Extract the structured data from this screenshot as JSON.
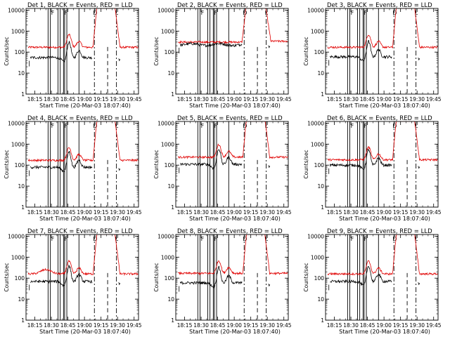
{
  "figure": {
    "title": "",
    "layout": "3x3 grid of detector light curves"
  },
  "chart_data": {
    "type": "line",
    "shared": {
      "xlabel": "Start Time (20-Mar-03 18:07:40)",
      "ylabel": "Counts/sec",
      "x_ticks": [
        "18:15",
        "18:30",
        "18:45",
        "19:00",
        "19:15",
        "19:30",
        "19:45"
      ],
      "x_tick_minutes": [
        0,
        15,
        30,
        45,
        60,
        75,
        90
      ],
      "y_scale": "log",
      "y_ticks": [
        "1",
        "10",
        "100",
        "1000",
        "10000"
      ],
      "y_tick_values": [
        1,
        10,
        100,
        1000,
        10000
      ],
      "xlim_minutes": [
        -8,
        94
      ],
      "ylim": [
        1,
        12000
      ],
      "vlines_solid_minutes": [
        12,
        14,
        21,
        23,
        26,
        27,
        29,
        40
      ],
      "vlines_dashdot_minutes": [
        54,
        74
      ],
      "markers": [
        {
          "label": "F",
          "x": 16
        },
        {
          "label": "F",
          "x": 28
        },
        {
          "label": "D",
          "x": 54
        },
        {
          "label": "L",
          "x": 74
        }
      ],
      "colors": {
        "black_series": "#000000",
        "red_series": "#e00000",
        "axis": "#000000"
      }
    },
    "panels": [
      {
        "title": "Det 1, BLACK = Events, RED = LLD",
        "black_base": 55,
        "red_base": 170,
        "peak_shape": "a"
      },
      {
        "title": "Det 2, BLACK = Events, RED = LLD",
        "black_base": 230,
        "red_base": 300,
        "peak_shape": "b"
      },
      {
        "title": "Det 3, BLACK = Events, RED = LLD",
        "black_base": 60,
        "red_base": 170,
        "peak_shape": "a"
      },
      {
        "title": "Det 4, BLACK = Events, RED = LLD",
        "black_base": 80,
        "red_base": 170,
        "peak_shape": "a"
      },
      {
        "title": "Det 5, BLACK = Events, RED = LLD",
        "black_base": 110,
        "red_base": 240,
        "peak_shape": "a"
      },
      {
        "title": "Det 6, BLACK = Events, RED = LLD",
        "black_base": 100,
        "red_base": 180,
        "peak_shape": "a"
      },
      {
        "title": "Det 7, BLACK = Events, RED = LLD",
        "black_base": 70,
        "red_base": 160,
        "peak_shape": "c"
      },
      {
        "title": "Det 8, BLACK = Events, RED = LLD",
        "black_base": 60,
        "red_base": 170,
        "peak_shape": "a"
      },
      {
        "title": "Det 9, BLACK = Events, RED = LLD",
        "black_base": 70,
        "red_base": 160,
        "peak_shape": "a"
      }
    ]
  }
}
